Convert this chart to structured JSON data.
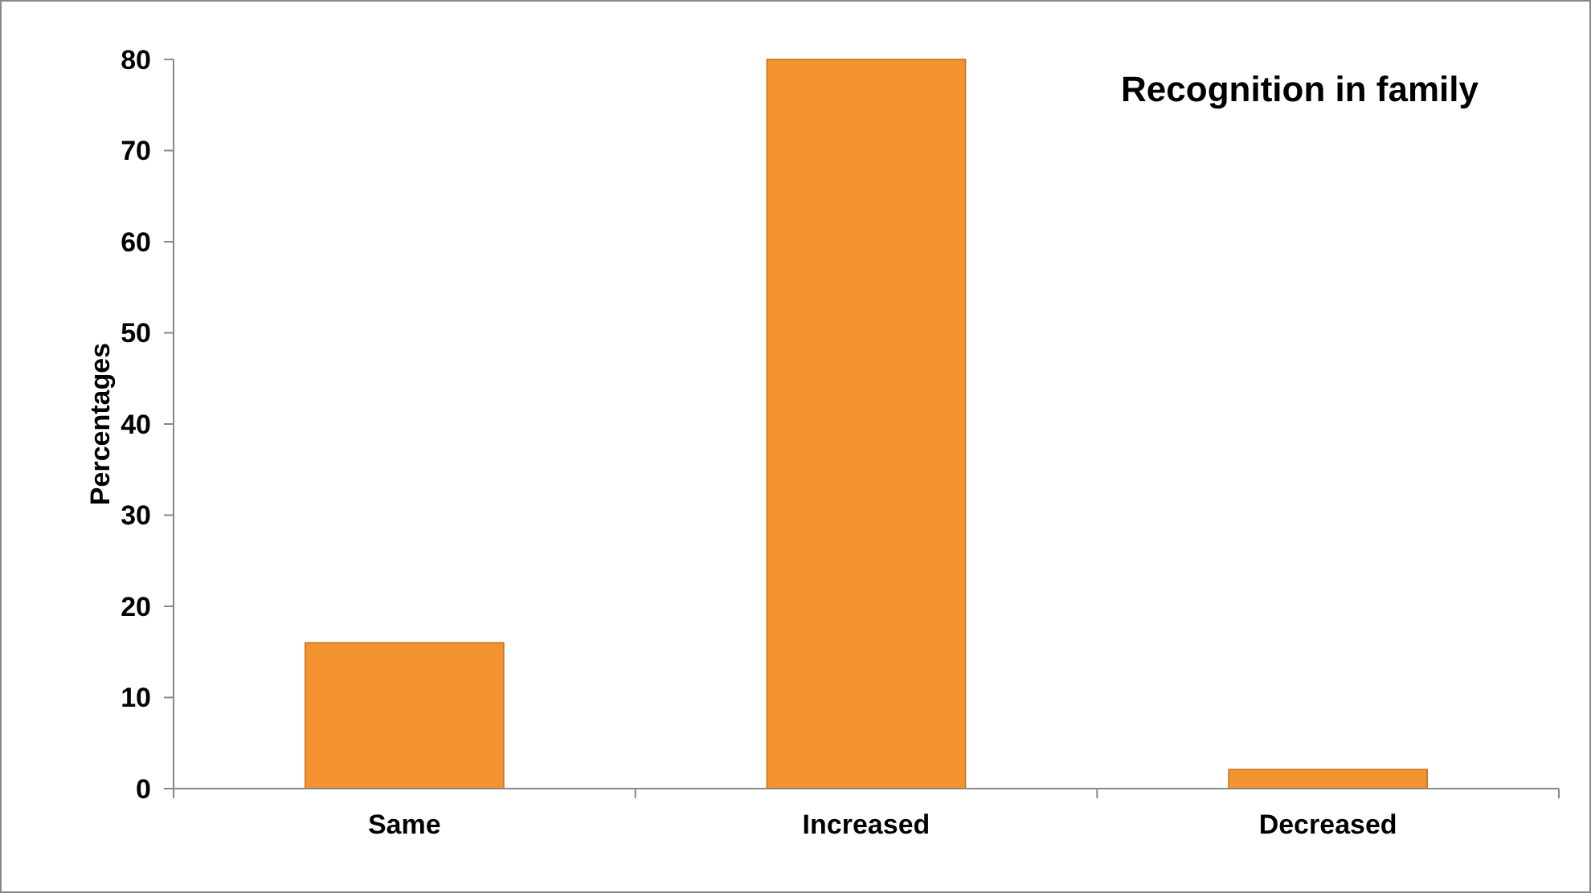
{
  "chart_data": {
    "type": "bar",
    "title": "Recognition in family",
    "ylabel": "Percentages",
    "categories": [
      "Same",
      "Increased",
      "Decreased"
    ],
    "values": [
      16,
      80,
      2.1
    ],
    "color": "#f39330",
    "ylim": [
      0,
      80
    ],
    "yticks": [
      0,
      10,
      20,
      30,
      40,
      50,
      60,
      70,
      80
    ],
    "grid": false
  }
}
